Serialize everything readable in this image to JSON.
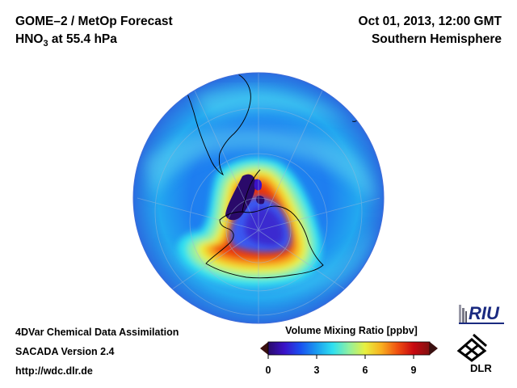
{
  "header": {
    "title_line1": "GOME–2 / MetOp Forecast",
    "species": "HNO",
    "species_sub": "3",
    "level": " at 55.4 hPa",
    "date": "Oct 01, 2013, 12:00 GMT",
    "region": "Southern Hemisphere"
  },
  "footer": {
    "line1": "4DVar Chemical Data Assimilation",
    "line2": "SACADA Version 2.4",
    "url": "http://wdc.dlr.de"
  },
  "colorbar": {
    "title": "Volume Mixing Ratio [ppbv]",
    "ticks": [
      "0",
      "3",
      "6",
      "9"
    ],
    "range": [
      0,
      10
    ],
    "colors": [
      "#2a0a6a",
      "#3a12c8",
      "#1a50f0",
      "#1a9cf0",
      "#2fe0f0",
      "#90f0a0",
      "#e8f040",
      "#f8b020",
      "#f05010",
      "#c80810",
      "#801010"
    ]
  },
  "logos": {
    "riu": "RIU",
    "dlr": "DLR"
  }
}
